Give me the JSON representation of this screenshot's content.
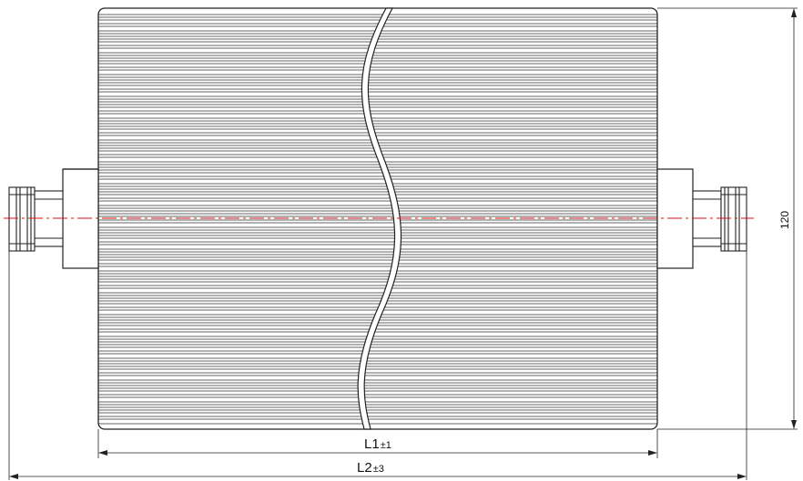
{
  "drawing": {
    "dimensions": {
      "l1": {
        "label": "L1",
        "tolerance": "±1"
      },
      "l2": {
        "label": "L2",
        "tolerance": "±3"
      },
      "height": {
        "value": "120"
      }
    },
    "colors": {
      "line": "#222222",
      "centerline": "#d01010",
      "background": "#ffffff"
    }
  }
}
